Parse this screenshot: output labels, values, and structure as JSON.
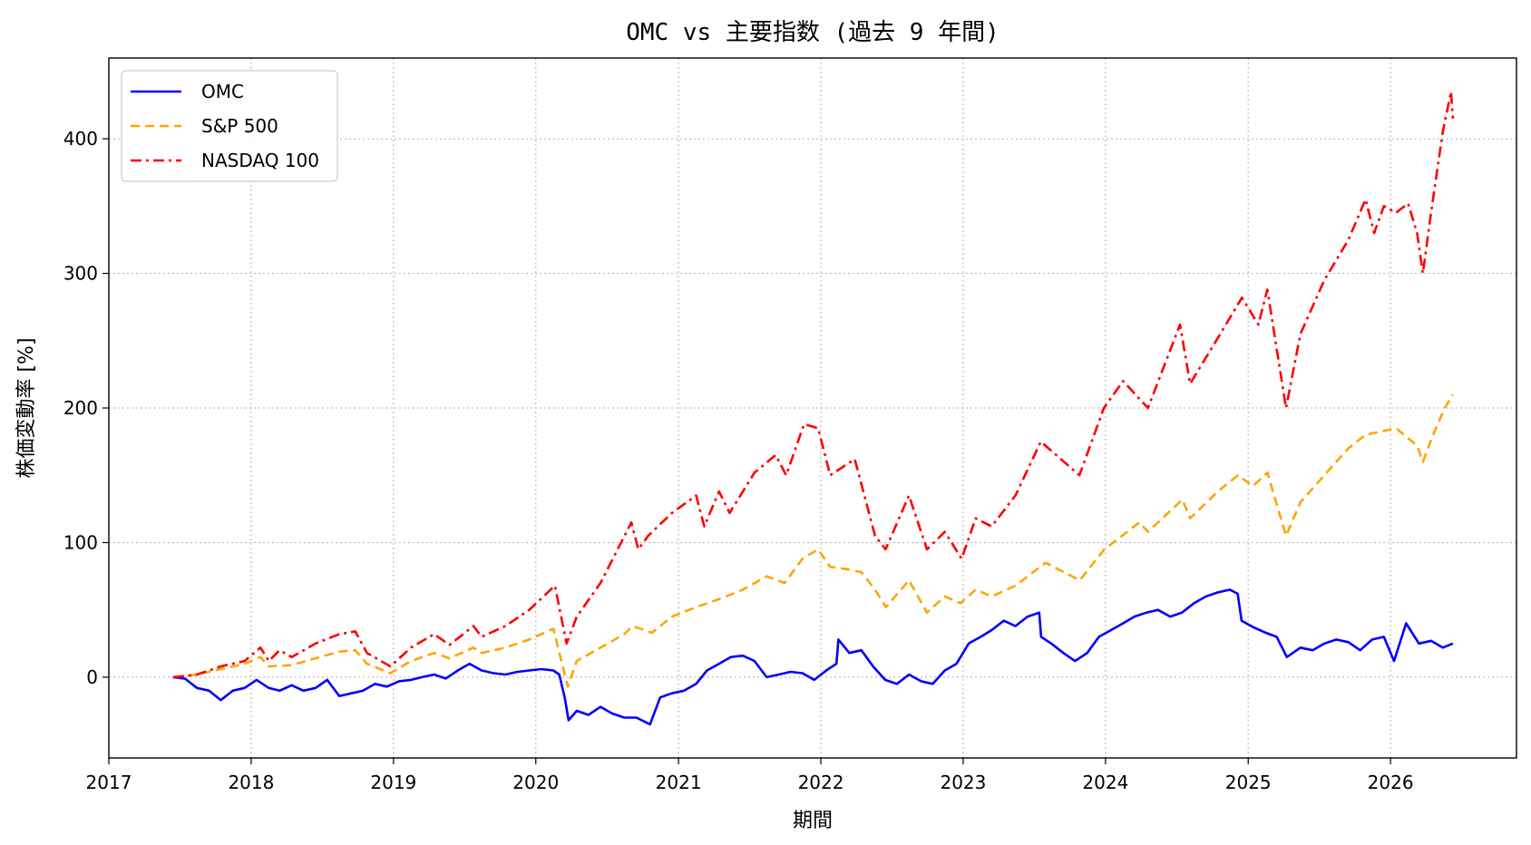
{
  "chart_data": {
    "type": "line",
    "title": "OMC vs 主要指数 (過去 9 年間)",
    "xlabel": "期間",
    "ylabel": "株価変動率 [%]",
    "xlim": [
      "2017-01-01",
      "2026-11-20"
    ],
    "ylim": [
      -60,
      460
    ],
    "xticks": [
      "2017",
      "2018",
      "2019",
      "2020",
      "2021",
      "2022",
      "2023",
      "2024",
      "2025",
      "2026"
    ],
    "yticks": [
      0,
      100,
      200,
      300,
      400
    ],
    "grid": true,
    "legend_position": "upper-left",
    "series": [
      {
        "name": "OMC",
        "color": "#0000ff",
        "style": "solid",
        "points": [
          [
            "2017-06-15",
            0
          ],
          [
            "2017-07-15",
            -1
          ],
          [
            "2017-08-15",
            -8
          ],
          [
            "2017-09-15",
            -10
          ],
          [
            "2017-10-15",
            -17
          ],
          [
            "2017-11-15",
            -10
          ],
          [
            "2017-12-15",
            -8
          ],
          [
            "2018-01-15",
            -2
          ],
          [
            "2018-02-15",
            -8
          ],
          [
            "2018-03-15",
            -10
          ],
          [
            "2018-04-15",
            -6
          ],
          [
            "2018-05-15",
            -10
          ],
          [
            "2018-06-15",
            -8
          ],
          [
            "2018-07-15",
            -2
          ],
          [
            "2018-08-15",
            -14
          ],
          [
            "2018-09-15",
            -12
          ],
          [
            "2018-10-15",
            -10
          ],
          [
            "2018-11-15",
            -5
          ],
          [
            "2018-12-15",
            -7
          ],
          [
            "2019-01-15",
            -3
          ],
          [
            "2019-02-15",
            -2
          ],
          [
            "2019-03-15",
            0
          ],
          [
            "2019-04-15",
            2
          ],
          [
            "2019-05-15",
            -1
          ],
          [
            "2019-06-15",
            5
          ],
          [
            "2019-07-15",
            10
          ],
          [
            "2019-08-15",
            5
          ],
          [
            "2019-09-15",
            3
          ],
          [
            "2019-10-15",
            2
          ],
          [
            "2019-11-15",
            4
          ],
          [
            "2019-12-15",
            5
          ],
          [
            "2020-01-15",
            6
          ],
          [
            "2020-02-15",
            5
          ],
          [
            "2020-03-01",
            2
          ],
          [
            "2020-03-15",
            -15
          ],
          [
            "2020-03-25",
            -32
          ],
          [
            "2020-04-15",
            -25
          ],
          [
            "2020-05-15",
            -28
          ],
          [
            "2020-06-15",
            -22
          ],
          [
            "2020-07-15",
            -27
          ],
          [
            "2020-08-15",
            -30
          ],
          [
            "2020-09-15",
            -30
          ],
          [
            "2020-10-20",
            -35
          ],
          [
            "2020-11-15",
            -15
          ],
          [
            "2020-12-15",
            -12
          ],
          [
            "2021-01-15",
            -10
          ],
          [
            "2021-02-15",
            -5
          ],
          [
            "2021-03-15",
            5
          ],
          [
            "2021-04-15",
            10
          ],
          [
            "2021-05-15",
            15
          ],
          [
            "2021-06-15",
            16
          ],
          [
            "2021-07-15",
            12
          ],
          [
            "2021-08-15",
            0
          ],
          [
            "2021-09-15",
            2
          ],
          [
            "2021-10-15",
            4
          ],
          [
            "2021-11-15",
            3
          ],
          [
            "2021-12-15",
            -2
          ],
          [
            "2022-01-15",
            5
          ],
          [
            "2022-02-10",
            10
          ],
          [
            "2022-02-15",
            28
          ],
          [
            "2022-03-15",
            18
          ],
          [
            "2022-04-15",
            20
          ],
          [
            "2022-05-15",
            8
          ],
          [
            "2022-06-15",
            -2
          ],
          [
            "2022-07-15",
            -5
          ],
          [
            "2022-08-15",
            2
          ],
          [
            "2022-09-15",
            -3
          ],
          [
            "2022-10-15",
            -5
          ],
          [
            "2022-11-15",
            5
          ],
          [
            "2022-12-15",
            10
          ],
          [
            "2023-01-15",
            25
          ],
          [
            "2023-02-15",
            30
          ],
          [
            "2023-03-15",
            35
          ],
          [
            "2023-04-15",
            42
          ],
          [
            "2023-05-15",
            38
          ],
          [
            "2023-06-15",
            45
          ],
          [
            "2023-07-15",
            48
          ],
          [
            "2023-07-20",
            30
          ],
          [
            "2023-08-15",
            25
          ],
          [
            "2023-09-15",
            18
          ],
          [
            "2023-10-15",
            12
          ],
          [
            "2023-11-15",
            18
          ],
          [
            "2023-12-15",
            30
          ],
          [
            "2024-01-15",
            35
          ],
          [
            "2024-02-15",
            40
          ],
          [
            "2024-03-15",
            45
          ],
          [
            "2024-04-15",
            48
          ],
          [
            "2024-05-15",
            50
          ],
          [
            "2024-06-15",
            45
          ],
          [
            "2024-07-15",
            48
          ],
          [
            "2024-08-15",
            55
          ],
          [
            "2024-09-15",
            60
          ],
          [
            "2024-10-15",
            63
          ],
          [
            "2024-11-15",
            65
          ],
          [
            "2024-12-05",
            62
          ],
          [
            "2024-12-15",
            42
          ],
          [
            "2025-01-15",
            37
          ],
          [
            "2025-02-15",
            33
          ],
          [
            "2025-03-15",
            30
          ],
          [
            "2025-04-10",
            15
          ],
          [
            "2025-05-15",
            22
          ],
          [
            "2025-06-15",
            20
          ],
          [
            "2025-07-15",
            25
          ],
          [
            "2025-08-15",
            28
          ],
          [
            "2025-09-15",
            26
          ],
          [
            "2025-10-15",
            20
          ],
          [
            "2025-11-15",
            28
          ],
          [
            "2025-12-15",
            30
          ],
          [
            "2026-01-10",
            12
          ],
          [
            "2026-02-10",
            40
          ],
          [
            "2026-03-15",
            25
          ],
          [
            "2026-04-15",
            27
          ],
          [
            "2026-05-15",
            22
          ],
          [
            "2026-06-10",
            25
          ]
        ]
      },
      {
        "name": "S&P 500",
        "color": "#ffa500",
        "style": "dashed",
        "points": [
          [
            "2017-06-15",
            0
          ],
          [
            "2017-08-15",
            2
          ],
          [
            "2017-10-15",
            6
          ],
          [
            "2017-12-15",
            10
          ],
          [
            "2018-01-25",
            15
          ],
          [
            "2018-02-15",
            8
          ],
          [
            "2018-04-15",
            9
          ],
          [
            "2018-06-15",
            14
          ],
          [
            "2018-08-15",
            19
          ],
          [
            "2018-09-25",
            20
          ],
          [
            "2018-10-25",
            10
          ],
          [
            "2018-12-24",
            3
          ],
          [
            "2019-02-15",
            12
          ],
          [
            "2019-04-15",
            18
          ],
          [
            "2019-05-25",
            14
          ],
          [
            "2019-07-25",
            22
          ],
          [
            "2019-08-15",
            18
          ],
          [
            "2019-10-15",
            22
          ],
          [
            "2019-12-15",
            28
          ],
          [
            "2020-02-15",
            36
          ],
          [
            "2020-03-23",
            -7
          ],
          [
            "2020-04-15",
            12
          ],
          [
            "2020-06-15",
            22
          ],
          [
            "2020-08-15",
            32
          ],
          [
            "2020-09-05",
            38
          ],
          [
            "2020-10-25",
            33
          ],
          [
            "2020-12-15",
            45
          ],
          [
            "2021-02-15",
            52
          ],
          [
            "2021-04-15",
            58
          ],
          [
            "2021-06-15",
            65
          ],
          [
            "2021-08-15",
            75
          ],
          [
            "2021-09-30",
            70
          ],
          [
            "2021-11-15",
            88
          ],
          [
            "2021-12-25",
            95
          ],
          [
            "2022-01-25",
            82
          ],
          [
            "2022-03-15",
            80
          ],
          [
            "2022-04-15",
            78
          ],
          [
            "2022-05-20",
            65
          ],
          [
            "2022-06-17",
            52
          ],
          [
            "2022-08-15",
            72
          ],
          [
            "2022-09-30",
            48
          ],
          [
            "2022-11-15",
            60
          ],
          [
            "2022-12-25",
            55
          ],
          [
            "2023-02-02",
            65
          ],
          [
            "2023-03-15",
            60
          ],
          [
            "2023-05-15",
            68
          ],
          [
            "2023-07-31",
            85
          ],
          [
            "2023-10-27",
            72
          ],
          [
            "2023-12-29",
            95
          ],
          [
            "2024-03-28",
            115
          ],
          [
            "2024-04-19",
            108
          ],
          [
            "2024-07-16",
            132
          ],
          [
            "2024-08-05",
            118
          ],
          [
            "2024-10-15",
            138
          ],
          [
            "2024-12-06",
            150
          ],
          [
            "2025-01-13",
            142
          ],
          [
            "2025-02-19",
            152
          ],
          [
            "2025-04-08",
            105
          ],
          [
            "2025-05-15",
            130
          ],
          [
            "2025-07-15",
            150
          ],
          [
            "2025-09-15",
            170
          ],
          [
            "2025-10-28",
            180
          ],
          [
            "2025-12-15",
            183
          ],
          [
            "2026-01-15",
            185
          ],
          [
            "2026-03-10",
            172
          ],
          [
            "2026-03-25",
            160
          ],
          [
            "2026-04-20",
            180
          ],
          [
            "2026-05-20",
            200
          ],
          [
            "2026-06-10",
            210
          ]
        ]
      },
      {
        "name": "NASDAQ 100",
        "color": "#ff0000",
        "style": "dashdot",
        "points": [
          [
            "2017-06-15",
            0
          ],
          [
            "2017-08-15",
            2
          ],
          [
            "2017-10-15",
            8
          ],
          [
            "2017-12-15",
            12
          ],
          [
            "2018-01-25",
            22
          ],
          [
            "2018-02-15",
            12
          ],
          [
            "2018-03-15",
            20
          ],
          [
            "2018-04-15",
            15
          ],
          [
            "2018-06-15",
            25
          ],
          [
            "2018-08-15",
            32
          ],
          [
            "2018-09-25",
            34
          ],
          [
            "2018-10-25",
            18
          ],
          [
            "2018-12-24",
            8
          ],
          [
            "2019-02-15",
            22
          ],
          [
            "2019-04-15",
            32
          ],
          [
            "2019-05-25",
            24
          ],
          [
            "2019-07-25",
            38
          ],
          [
            "2019-08-15",
            30
          ],
          [
            "2019-10-15",
            38
          ],
          [
            "2019-12-15",
            50
          ],
          [
            "2020-02-19",
            68
          ],
          [
            "2020-03-20",
            25
          ],
          [
            "2020-04-15",
            45
          ],
          [
            "2020-06-15",
            70
          ],
          [
            "2020-09-02",
            115
          ],
          [
            "2020-09-20",
            95
          ],
          [
            "2020-10-15",
            105
          ],
          [
            "2020-12-15",
            122
          ],
          [
            "2021-02-15",
            135
          ],
          [
            "2021-03-08",
            112
          ],
          [
            "2021-04-15",
            138
          ],
          [
            "2021-05-12",
            122
          ],
          [
            "2021-07-15",
            152
          ],
          [
            "2021-09-07",
            165
          ],
          [
            "2021-10-04",
            150
          ],
          [
            "2021-11-19",
            188
          ],
          [
            "2021-12-25",
            185
          ],
          [
            "2022-01-25",
            150
          ],
          [
            "2022-03-29",
            162
          ],
          [
            "2022-05-20",
            105
          ],
          [
            "2022-06-16",
            95
          ],
          [
            "2022-08-15",
            135
          ],
          [
            "2022-09-30",
            95
          ],
          [
            "2022-11-15",
            108
          ],
          [
            "2022-12-28",
            88
          ],
          [
            "2023-02-02",
            118
          ],
          [
            "2023-03-15",
            112
          ],
          [
            "2023-05-15",
            135
          ],
          [
            "2023-07-19",
            175
          ],
          [
            "2023-10-26",
            150
          ],
          [
            "2023-12-28",
            200
          ],
          [
            "2024-02-15",
            220
          ],
          [
            "2024-04-19",
            200
          ],
          [
            "2024-07-10",
            262
          ],
          [
            "2024-08-05",
            218
          ],
          [
            "2024-10-15",
            252
          ],
          [
            "2024-12-16",
            282
          ],
          [
            "2025-01-27",
            262
          ],
          [
            "2025-02-19",
            288
          ],
          [
            "2025-04-08",
            200
          ],
          [
            "2025-05-15",
            255
          ],
          [
            "2025-07-15",
            295
          ],
          [
            "2025-09-15",
            325
          ],
          [
            "2025-10-29",
            355
          ],
          [
            "2025-11-20",
            330
          ],
          [
            "2025-12-15",
            350
          ],
          [
            "2026-01-15",
            345
          ],
          [
            "2026-02-15",
            352
          ],
          [
            "2026-03-10",
            330
          ],
          [
            "2026-03-25",
            300
          ],
          [
            "2026-04-15",
            345
          ],
          [
            "2026-05-15",
            405
          ],
          [
            "2026-06-05",
            435
          ],
          [
            "2026-06-10",
            415
          ]
        ]
      }
    ]
  }
}
